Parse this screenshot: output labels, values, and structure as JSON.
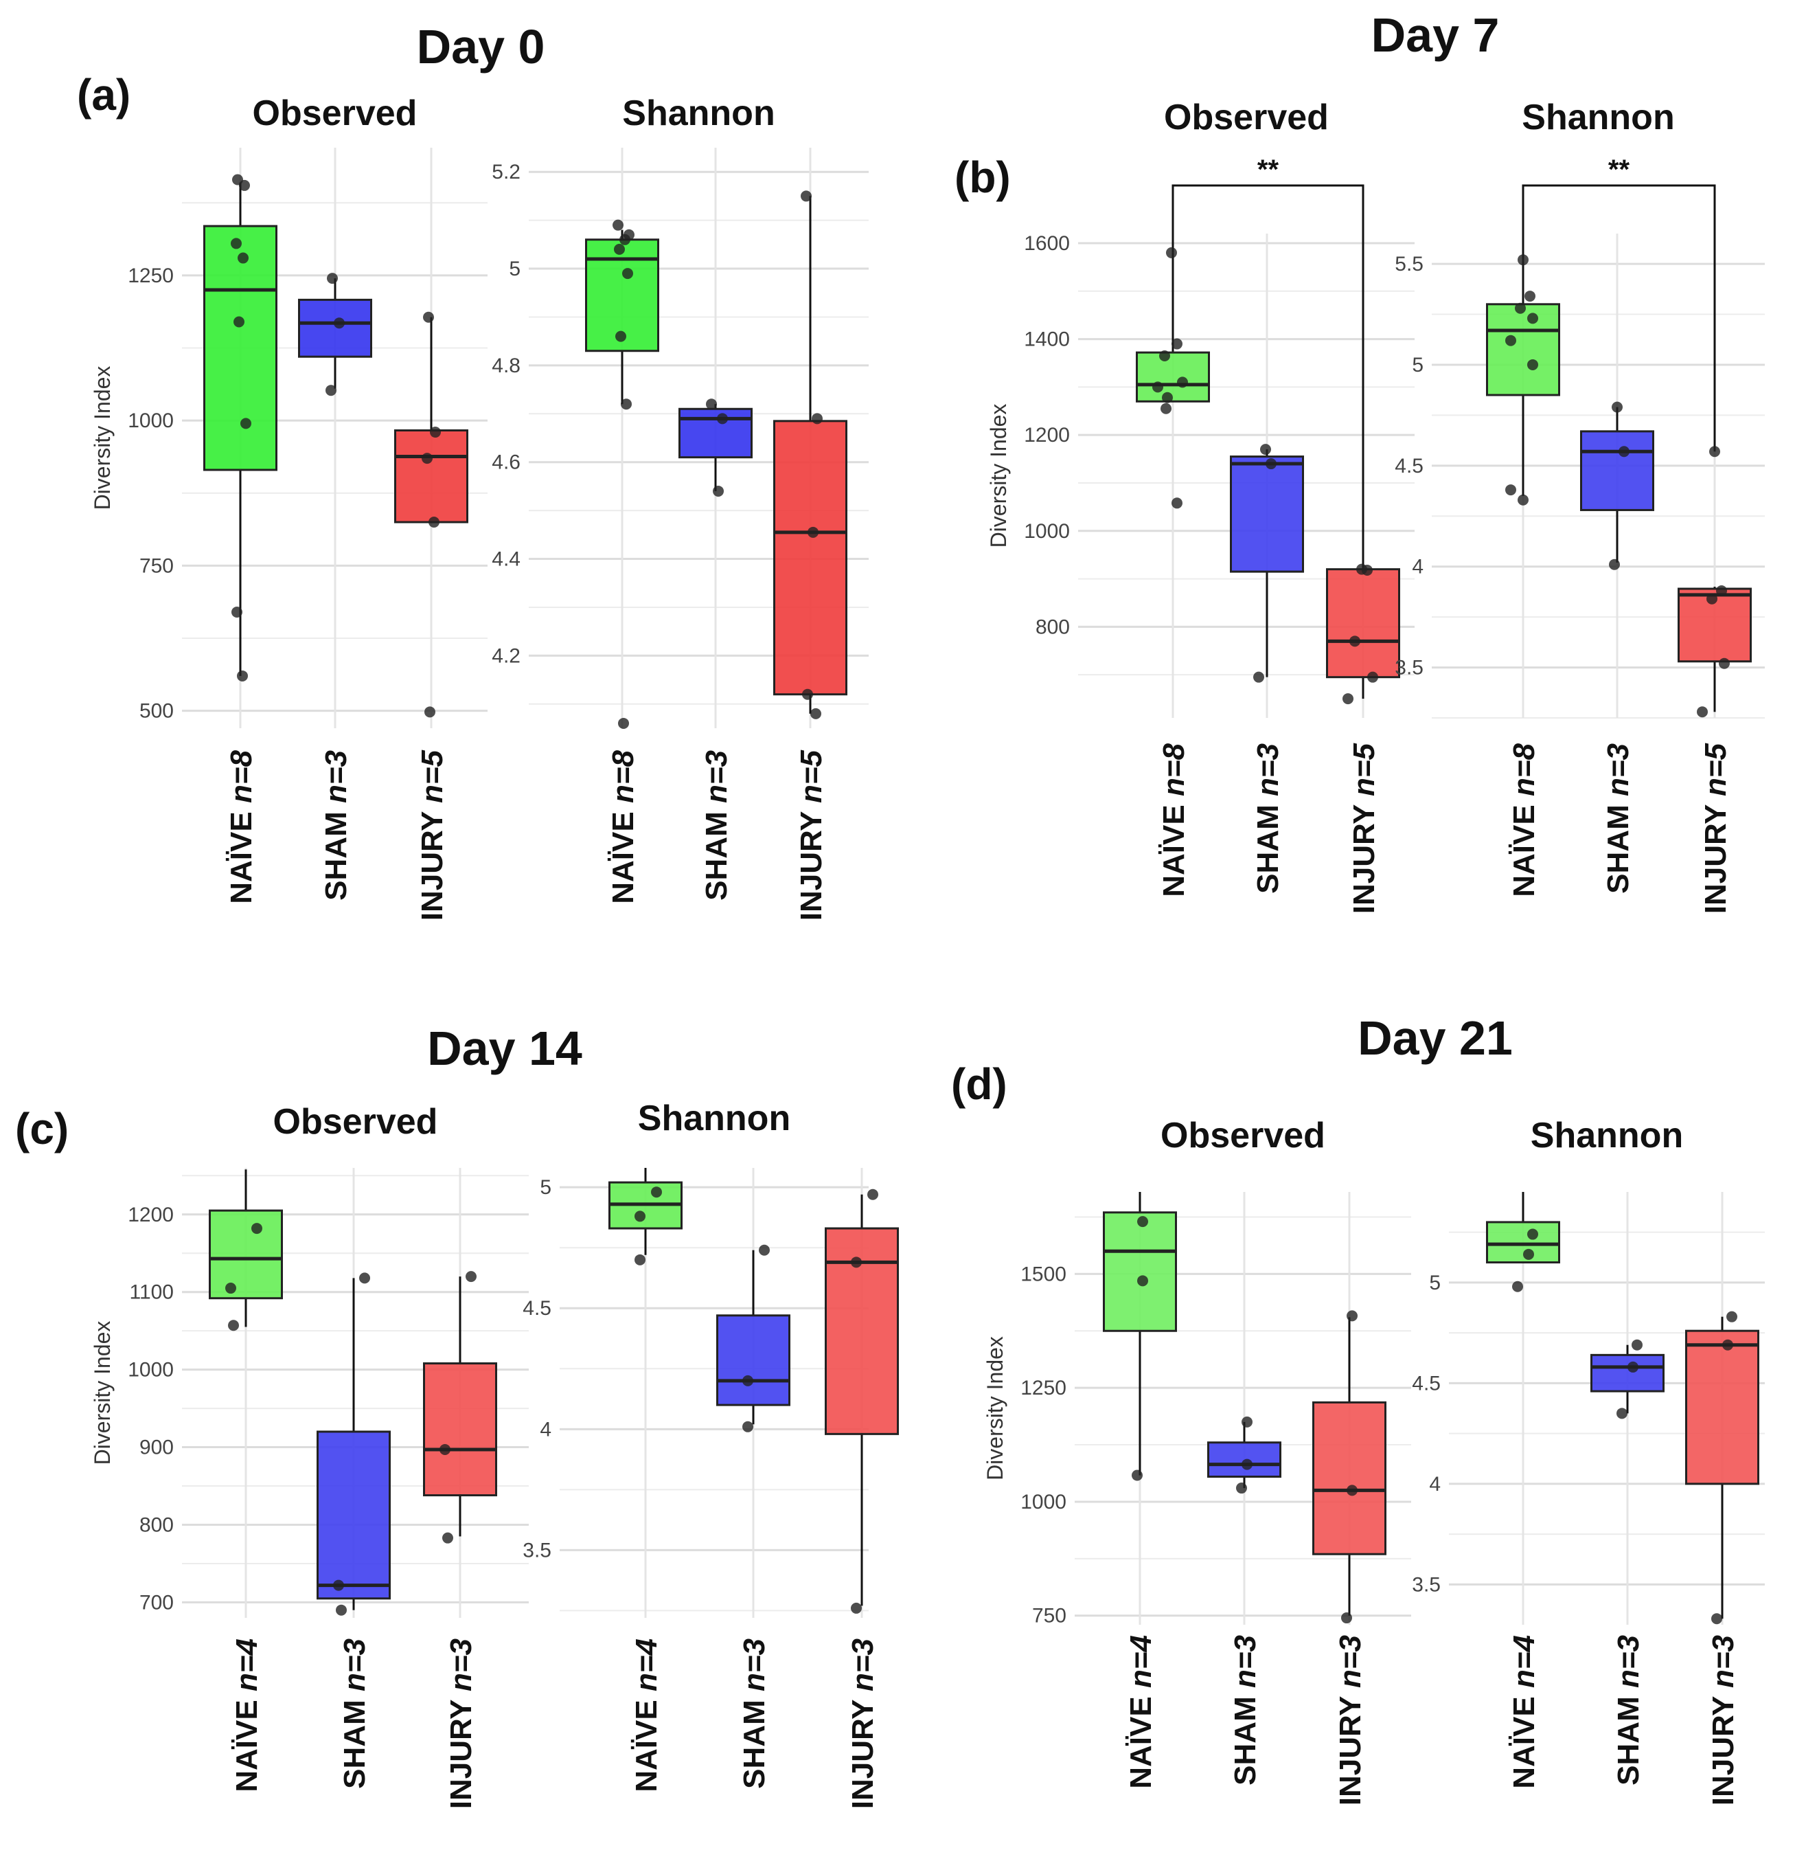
{
  "chart_data": [
    {
      "type": "box",
      "panel": "(a)",
      "day": "Day 0",
      "colors": {
        "NAÏVE": "#33ee33",
        "SHAM": "#3333ee",
        "INJURY": "#f03c3c"
      },
      "plots": [
        {
          "title": "Observed",
          "ylabel": "Diversity Index",
          "ylim": [
            470,
            1470
          ],
          "yticks": [
            500,
            750,
            1000,
            1250
          ],
          "groups": [
            {
              "group": "NAÏVE",
              "n": "n=8",
              "whisker_low": 560,
              "q1": 915,
              "median": 1225,
              "q3": 1335,
              "whisker_high": 1410,
              "points": [
                1415,
                1405,
                1305,
                1280,
                1170,
                995,
                670,
                560
              ]
            },
            {
              "group": "SHAM",
              "n": "n=3",
              "whisker_low": 1055,
              "q1": 1110,
              "median": 1168,
              "q3": 1208,
              "whisker_high": 1245,
              "points": [
                1245,
                1168,
                1052
              ]
            },
            {
              "group": "INJURY",
              "n": "n=5",
              "whisker_low": 825,
              "q1": 825,
              "median": 938,
              "q3": 983,
              "whisker_high": 1178,
              "points": [
                1178,
                980,
                935,
                825,
                498
              ]
            }
          ]
        },
        {
          "title": "Shannon",
          "ylabel": "",
          "ylim": [
            4.05,
            5.25
          ],
          "yticks": [
            4.2,
            4.4,
            4.6,
            4.8,
            5.0,
            5.2
          ],
          "groups": [
            {
              "group": "NAÏVE",
              "n": "n=8",
              "whisker_low": 4.72,
              "q1": 4.83,
              "median": 5.02,
              "q3": 5.06,
              "whisker_high": 5.08,
              "points": [
                5.09,
                5.07,
                5.06,
                5.04,
                4.99,
                4.86,
                4.72,
                4.06
              ]
            },
            {
              "group": "SHAM",
              "n": "n=3",
              "whisker_low": 4.54,
              "q1": 4.61,
              "median": 4.69,
              "q3": 4.71,
              "whisker_high": 4.72,
              "points": [
                4.72,
                4.69,
                4.54
              ]
            },
            {
              "group": "INJURY",
              "n": "n=5",
              "whisker_low": 4.08,
              "q1": 4.12,
              "median": 4.455,
              "q3": 4.685,
              "whisker_high": 5.15,
              "points": [
                5.15,
                4.69,
                4.455,
                4.12,
                4.08
              ]
            }
          ]
        }
      ]
    },
    {
      "type": "box",
      "panel": "(b)",
      "day": "Day 7",
      "colors": {
        "NAÏVE": "#66ee55",
        "SHAM": "#3f3ff0",
        "INJURY": "#f24a4a"
      },
      "plots": [
        {
          "title": "Observed",
          "ylabel": "Diversity Index",
          "ylim": [
            610,
            1620
          ],
          "yticks": [
            800,
            1000,
            1200,
            1400,
            1600
          ],
          "significance": {
            "from": "NAÏVE",
            "to": "INJURY",
            "label": "**"
          },
          "groups": [
            {
              "group": "NAÏVE",
              "n": "n=8",
              "whisker_low": 1270,
              "q1": 1270,
              "median": 1305,
              "q3": 1372,
              "whisker_high": 1580,
              "points": [
                1580,
                1390,
                1365,
                1310,
                1300,
                1278,
                1255,
                1058
              ]
            },
            {
              "group": "SHAM",
              "n": "n=3",
              "whisker_low": 695,
              "q1": 915,
              "median": 1140,
              "q3": 1155,
              "whisker_high": 1170,
              "points": [
                1170,
                1140,
                695
              ]
            },
            {
              "group": "INJURY",
              "n": "n=5",
              "whisker_low": 650,
              "q1": 695,
              "median": 770,
              "q3": 920,
              "whisker_high": 920,
              "points": [
                920,
                918,
                770,
                695,
                650
              ]
            }
          ]
        },
        {
          "title": "Shannon",
          "ylabel": "",
          "ylim": [
            3.25,
            5.65
          ],
          "yticks": [
            3.5,
            4.0,
            4.5,
            5.0,
            5.5
          ],
          "significance": {
            "from": "NAÏVE",
            "to": "INJURY",
            "label": "**"
          },
          "groups": [
            {
              "group": "NAÏVE",
              "n": "n=8",
              "whisker_low": 4.35,
              "q1": 4.85,
              "median": 5.17,
              "q3": 5.3,
              "whisker_high": 5.52,
              "points": [
                5.52,
                5.34,
                5.28,
                5.23,
                5.12,
                5.0,
                4.38,
                4.33
              ]
            },
            {
              "group": "SHAM",
              "n": "n=3",
              "whisker_low": 4.02,
              "q1": 4.28,
              "median": 4.57,
              "q3": 4.67,
              "whisker_high": 4.79,
              "points": [
                4.79,
                4.57,
                4.01
              ]
            },
            {
              "group": "INJURY",
              "n": "n=5",
              "whisker_low": 3.28,
              "q1": 3.53,
              "median": 3.86,
              "q3": 3.89,
              "whisker_high": 3.9,
              "points": [
                4.57,
                3.88,
                3.84,
                3.52,
                3.28
              ]
            }
          ]
        }
      ]
    },
    {
      "type": "box",
      "panel": "(c)",
      "day": "Day 14",
      "colors": {
        "NAÏVE": "#66ee55",
        "SHAM": "#3f3ff0",
        "INJURY": "#f25050"
      },
      "plots": [
        {
          "title": "Observed",
          "ylabel": "Diversity Index",
          "ylim": [
            680,
            1260
          ],
          "yticks": [
            700,
            800,
            900,
            1000,
            1100,
            1200
          ],
          "groups": [
            {
              "group": "NAÏVE",
              "n": "n=4",
              "whisker_low": 1055,
              "q1": 1092,
              "median": 1143,
              "q3": 1205,
              "whisker_high": 1258,
              "points": [
                1182,
                1105,
                1057
              ]
            },
            {
              "group": "SHAM",
              "n": "n=3",
              "whisker_low": 690,
              "q1": 705,
              "median": 722,
              "q3": 920,
              "whisker_high": 1118,
              "points": [
                1118,
                722,
                690
              ]
            },
            {
              "group": "INJURY",
              "n": "n=3",
              "whisker_low": 785,
              "q1": 838,
              "median": 897,
              "q3": 1008,
              "whisker_high": 1120,
              "points": [
                1120,
                897,
                783
              ]
            }
          ]
        },
        {
          "title": "Shannon",
          "ylabel": "",
          "ylim": [
            3.22,
            5.08
          ],
          "yticks": [
            3.5,
            4.0,
            4.5,
            5.0
          ],
          "groups": [
            {
              "group": "NAÏVE",
              "n": "n=4",
              "whisker_low": 4.72,
              "q1": 4.83,
              "median": 4.93,
              "q3": 5.02,
              "whisker_high": 5.08,
              "points": [
                4.98,
                4.88,
                4.7
              ]
            },
            {
              "group": "SHAM",
              "n": "n=3",
              "whisker_low": 4.02,
              "q1": 4.1,
              "median": 4.2,
              "q3": 4.47,
              "whisker_high": 4.74,
              "points": [
                4.74,
                4.2,
                4.01
              ]
            },
            {
              "group": "INJURY",
              "n": "n=3",
              "whisker_low": 3.27,
              "q1": 3.98,
              "median": 4.69,
              "q3": 4.83,
              "whisker_high": 4.97,
              "points": [
                4.97,
                4.69,
                3.26
              ]
            }
          ]
        }
      ]
    },
    {
      "type": "box",
      "panel": "(d)",
      "day": "Day 21",
      "colors": {
        "NAÏVE": "#70ee60",
        "SHAM": "#4040f0",
        "INJURY": "#f25555"
      },
      "plots": [
        {
          "title": "Observed",
          "ylabel": "Diversity Index",
          "ylim": [
            730,
            1680
          ],
          "yticks": [
            750,
            1000,
            1250,
            1500
          ],
          "groups": [
            {
              "group": "NAÏVE",
              "n": "n=4",
              "whisker_low": 1058,
              "q1": 1375,
              "median": 1550,
              "q3": 1635,
              "whisker_high": 1680,
              "points": [
                1615,
                1485,
                1058
              ]
            },
            {
              "group": "SHAM",
              "n": "n=3",
              "whisker_low": 1030,
              "q1": 1055,
              "median": 1082,
              "q3": 1130,
              "whisker_high": 1175,
              "points": [
                1175,
                1082,
                1030
              ]
            },
            {
              "group": "INJURY",
              "n": "n=3",
              "whisker_low": 750,
              "q1": 885,
              "median": 1025,
              "q3": 1218,
              "whisker_high": 1405,
              "points": [
                1408,
                1025,
                745
              ]
            }
          ]
        },
        {
          "title": "Shannon",
          "ylabel": "",
          "ylim": [
            3.3,
            5.45
          ],
          "yticks": [
            3.5,
            4.0,
            4.5,
            5.0
          ],
          "groups": [
            {
              "group": "NAÏVE",
              "n": "n=4",
              "whisker_low": 5.1,
              "q1": 5.1,
              "median": 5.19,
              "q3": 5.3,
              "whisker_high": 5.45,
              "points": [
                5.24,
                5.14,
                4.98
              ]
            },
            {
              "group": "SHAM",
              "n": "n=3",
              "whisker_low": 4.35,
              "q1": 4.46,
              "median": 4.58,
              "q3": 4.64,
              "whisker_high": 4.69,
              "points": [
                4.69,
                4.58,
                4.35
              ]
            },
            {
              "group": "INJURY",
              "n": "n=3",
              "whisker_low": 3.33,
              "q1": 4.0,
              "median": 4.69,
              "q3": 4.76,
              "whisker_high": 4.83,
              "points": [
                4.83,
                4.69,
                3.33
              ]
            }
          ]
        }
      ]
    }
  ]
}
